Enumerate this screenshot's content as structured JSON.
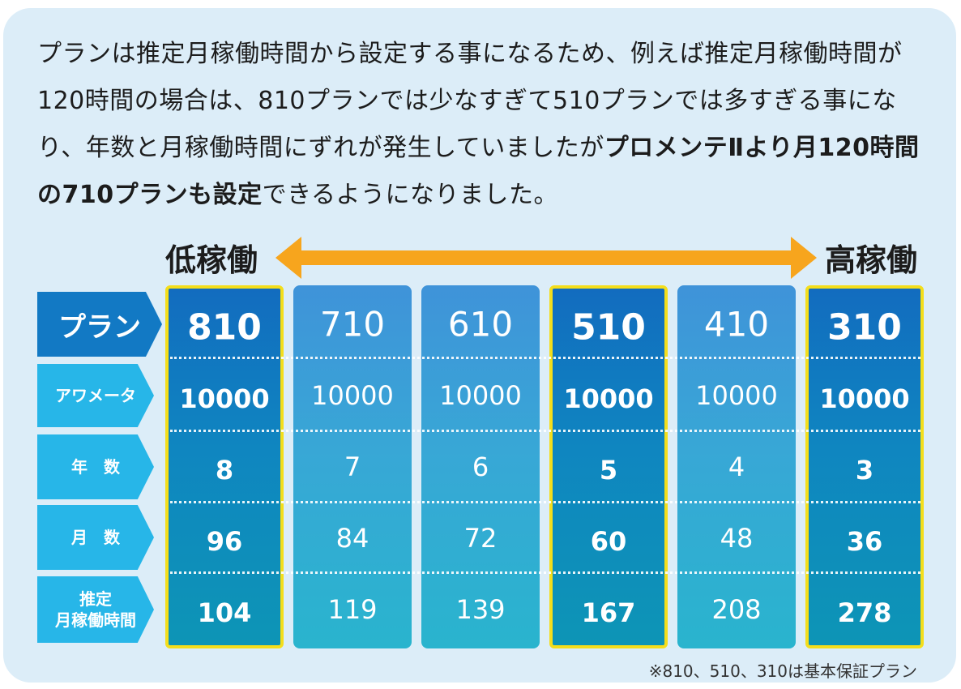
{
  "intro": {
    "part1": "プランは推定月稼働時間から設定する事になるため、例えば推定月稼働時間が120時間の場合は、810プランでは少なすぎて510プランでは多すぎる事になり、年数と月稼働時間にずれが発生していましたが",
    "emphasis": "プロメンテⅡより月120時間の710プランも設定",
    "part2": "できるようになりました。"
  },
  "scale": {
    "low": "低稼働",
    "high": "高稼働",
    "arrow_color": "#f7a51d"
  },
  "row_labels": [
    "プラン",
    "アワメータ",
    "年　数",
    "月　数",
    "推定\n月稼働時間"
  ],
  "columns": [
    {
      "plan": "810",
      "hour_meter": "10000",
      "years": "8",
      "months": "96",
      "monthly_hours": "104",
      "highlight": true
    },
    {
      "plan": "710",
      "hour_meter": "10000",
      "years": "7",
      "months": "84",
      "monthly_hours": "119",
      "highlight": false
    },
    {
      "plan": "610",
      "hour_meter": "10000",
      "years": "6",
      "months": "72",
      "monthly_hours": "139",
      "highlight": false
    },
    {
      "plan": "510",
      "hour_meter": "10000",
      "years": "5",
      "months": "60",
      "monthly_hours": "167",
      "highlight": true
    },
    {
      "plan": "410",
      "hour_meter": "10000",
      "years": "4",
      "months": "48",
      "monthly_hours": "208",
      "highlight": false
    },
    {
      "plan": "310",
      "hour_meter": "10000",
      "years": "3",
      "months": "36",
      "monthly_hours": "278",
      "highlight": true
    }
  ],
  "footnote": "※810、510、310は基本保証プラン",
  "colors": {
    "highlight_border": "#f4de1b",
    "panel_background": "#dcedf8"
  }
}
